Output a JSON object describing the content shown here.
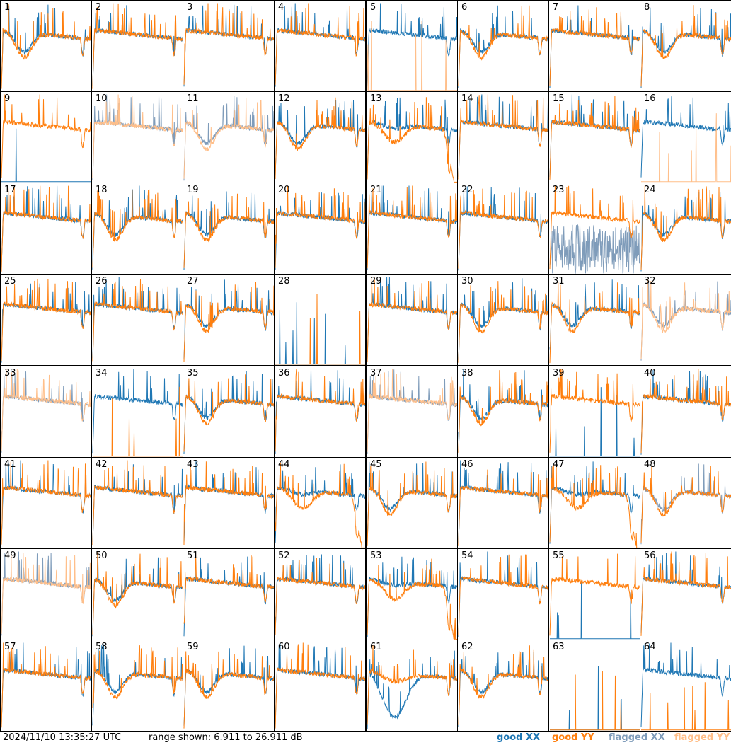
{
  "footer": {
    "timestamp": "2024/11/10 13:35:27 UTC",
    "range_text": "range shown: 6.911 to 26.911 dB"
  },
  "legend": [
    {
      "label": "good XX",
      "color": "#1f77b4"
    },
    {
      "label": "good YY",
      "color": "#ff7f0e"
    },
    {
      "label": "flagged XX",
      "color": "#7f9cba"
    },
    {
      "label": "flagged YY",
      "color": "#ffbf8a"
    }
  ],
  "chart_data": {
    "type": "line",
    "range_db": [
      6.911,
      26.911
    ],
    "grid_layout": {
      "rows": 8,
      "cols": 8
    },
    "panels": [
      {
        "id": "1",
        "xx": "good",
        "yy": "good",
        "shape": "dip"
      },
      {
        "id": "2",
        "xx": "good",
        "yy": "good",
        "shape": "flat"
      },
      {
        "id": "3",
        "xx": "good",
        "yy": "good",
        "shape": "flat"
      },
      {
        "id": "4",
        "xx": "good",
        "yy": "good",
        "shape": "flat"
      },
      {
        "id": "5",
        "xx": "good",
        "yy": "flagged",
        "shape": "dead-yy"
      },
      {
        "id": "6",
        "xx": "good",
        "yy": "good",
        "shape": "dip"
      },
      {
        "id": "7",
        "xx": "good",
        "yy": "good",
        "shape": "flat"
      },
      {
        "id": "8",
        "xx": "good",
        "yy": "good",
        "shape": "dip"
      },
      {
        "id": "9",
        "xx": "good",
        "yy": "good",
        "shape": "dead-xx"
      },
      {
        "id": "10",
        "xx": "flagged",
        "yy": "flagged",
        "shape": "flat"
      },
      {
        "id": "11",
        "xx": "flagged",
        "yy": "flagged",
        "shape": "dip"
      },
      {
        "id": "12",
        "xx": "good",
        "yy": "good",
        "shape": "dip"
      },
      {
        "id": "13",
        "xx": "good",
        "yy": "good",
        "shape": "rolloff"
      },
      {
        "id": "14",
        "xx": "good",
        "yy": "good",
        "shape": "flat"
      },
      {
        "id": "15",
        "xx": "good",
        "yy": "good",
        "shape": "flat"
      },
      {
        "id": "16",
        "xx": "good",
        "yy": "flagged",
        "shape": "dead-yy"
      },
      {
        "id": "17",
        "xx": "good",
        "yy": "good",
        "shape": "flat"
      },
      {
        "id": "18",
        "xx": "good",
        "yy": "good",
        "shape": "dip"
      },
      {
        "id": "19",
        "xx": "good",
        "yy": "good",
        "shape": "dip"
      },
      {
        "id": "20",
        "xx": "good",
        "yy": "good",
        "shape": "flat"
      },
      {
        "id": "21",
        "xx": "good",
        "yy": "good",
        "shape": "flat"
      },
      {
        "id": "22",
        "xx": "good",
        "yy": "good",
        "shape": "flat"
      },
      {
        "id": "23",
        "xx": "flagged",
        "yy": "good",
        "shape": "noisy"
      },
      {
        "id": "24",
        "xx": "good",
        "yy": "good",
        "shape": "dip"
      },
      {
        "id": "25",
        "xx": "good",
        "yy": "good",
        "shape": "flat"
      },
      {
        "id": "26",
        "xx": "good",
        "yy": "good",
        "shape": "flat"
      },
      {
        "id": "27",
        "xx": "good",
        "yy": "good",
        "shape": "dip"
      },
      {
        "id": "28",
        "xx": "good",
        "yy": "good",
        "shape": "dead"
      },
      {
        "id": "29",
        "xx": "good",
        "yy": "good",
        "shape": "flat"
      },
      {
        "id": "30",
        "xx": "good",
        "yy": "good",
        "shape": "dip"
      },
      {
        "id": "31",
        "xx": "good",
        "yy": "good",
        "shape": "dip"
      },
      {
        "id": "32",
        "xx": "flagged",
        "yy": "flagged",
        "shape": "dip"
      },
      {
        "id": "33",
        "xx": "flagged",
        "yy": "flagged",
        "shape": "flat"
      },
      {
        "id": "34",
        "xx": "good",
        "yy": "good",
        "shape": "dead-yy"
      },
      {
        "id": "35",
        "xx": "good",
        "yy": "good",
        "shape": "dip"
      },
      {
        "id": "36",
        "xx": "good",
        "yy": "good",
        "shape": "flat"
      },
      {
        "id": "37",
        "xx": "flagged",
        "yy": "flagged",
        "shape": "flat"
      },
      {
        "id": "38",
        "xx": "good",
        "yy": "good",
        "shape": "dip"
      },
      {
        "id": "39",
        "xx": "good",
        "yy": "good",
        "shape": "dead-xx"
      },
      {
        "id": "40",
        "xx": "good",
        "yy": "good",
        "shape": "flat"
      },
      {
        "id": "41",
        "xx": "good",
        "yy": "good",
        "shape": "flat"
      },
      {
        "id": "42",
        "xx": "good",
        "yy": "good",
        "shape": "flat"
      },
      {
        "id": "43",
        "xx": "good",
        "yy": "good",
        "shape": "flat"
      },
      {
        "id": "44",
        "xx": "good",
        "yy": "good",
        "shape": "rolloff"
      },
      {
        "id": "45",
        "xx": "good",
        "yy": "good",
        "shape": "dip"
      },
      {
        "id": "46",
        "xx": "good",
        "yy": "good",
        "shape": "flat"
      },
      {
        "id": "47",
        "xx": "good",
        "yy": "good",
        "shape": "rolloff"
      },
      {
        "id": "48",
        "xx": "flagged",
        "yy": "good",
        "shape": "dip"
      },
      {
        "id": "49",
        "xx": "flagged",
        "yy": "flagged",
        "shape": "flat"
      },
      {
        "id": "50",
        "xx": "good",
        "yy": "good",
        "shape": "dip"
      },
      {
        "id": "51",
        "xx": "good",
        "yy": "good",
        "shape": "flat"
      },
      {
        "id": "52",
        "xx": "good",
        "yy": "good",
        "shape": "flat"
      },
      {
        "id": "53",
        "xx": "good",
        "yy": "good",
        "shape": "rolloff"
      },
      {
        "id": "54",
        "xx": "good",
        "yy": "good",
        "shape": "flat"
      },
      {
        "id": "55",
        "xx": "good",
        "yy": "good",
        "shape": "dead-xx"
      },
      {
        "id": "56",
        "xx": "good",
        "yy": "good",
        "shape": "flat"
      },
      {
        "id": "57",
        "xx": "good",
        "yy": "good",
        "shape": "flat"
      },
      {
        "id": "58",
        "xx": "good",
        "yy": "good",
        "shape": "dip"
      },
      {
        "id": "59",
        "xx": "good",
        "yy": "good",
        "shape": "dip"
      },
      {
        "id": "60",
        "xx": "good",
        "yy": "good",
        "shape": "flat"
      },
      {
        "id": "61",
        "xx": "good",
        "yy": "good",
        "shape": "deep"
      },
      {
        "id": "62",
        "xx": "good",
        "yy": "good",
        "shape": "dip"
      },
      {
        "id": "63",
        "xx": "good",
        "yy": "good",
        "shape": "dead"
      },
      {
        "id": "64",
        "xx": "good",
        "yy": "good",
        "shape": "dead-yy"
      }
    ]
  }
}
